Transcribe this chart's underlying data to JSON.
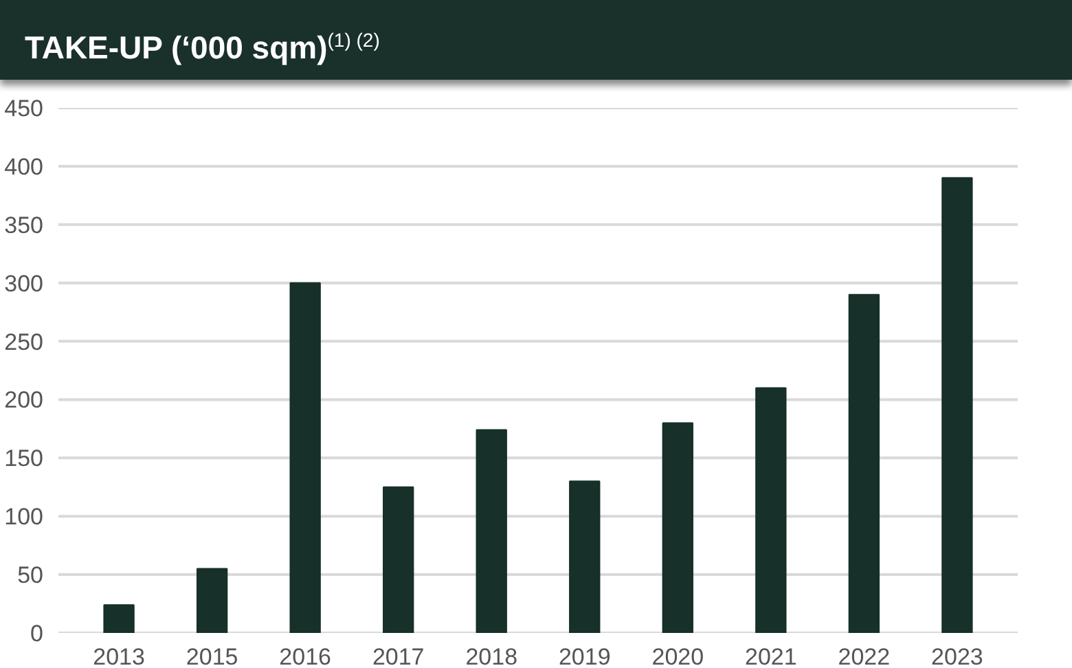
{
  "chart_data": {
    "type": "bar",
    "title": "TAKE-UP (‘000 sqm)$^{(1) (2)}$",
    "categories": [
      "2013",
      "2015",
      "2016",
      "2017",
      "2018",
      "2019",
      "2020",
      "2021",
      "2022",
      "2023"
    ],
    "values": [
      24,
      55,
      300,
      125,
      174,
      130,
      180,
      210,
      290,
      390
    ],
    "color": "#173029",
    "ylim": [
      0,
      450
    ],
    "yticks": [
      0,
      50,
      100,
      150,
      200,
      250,
      300,
      350,
      400,
      450
    ],
    "grid": "y"
  }
}
